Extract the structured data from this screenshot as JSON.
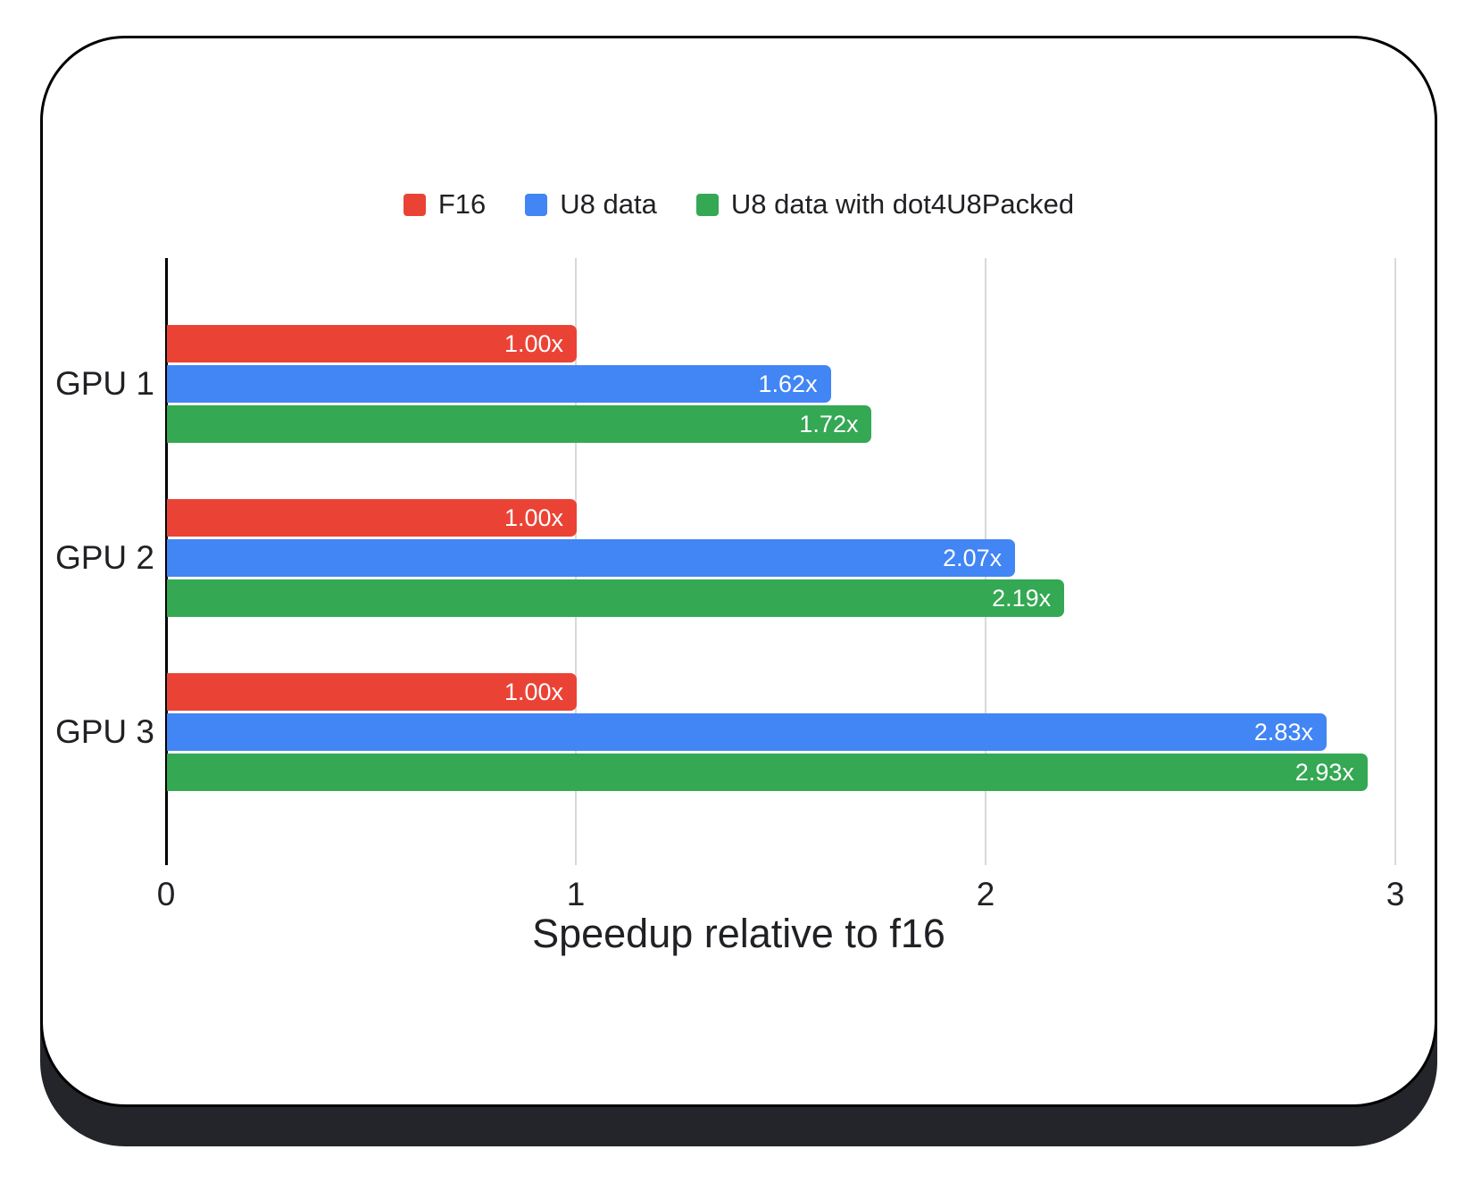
{
  "card": {
    "background": "#ffffff",
    "border_color": "#000000",
    "shadow_color": "#23252a"
  },
  "chart_data": {
    "type": "bar",
    "orientation": "horizontal",
    "title": "Speedup relative to f16",
    "categories": [
      "GPU 1",
      "GPU 2",
      "GPU 3"
    ],
    "series": [
      {
        "name": "F16",
        "color": "#ea4335",
        "values": [
          1.0,
          1.0,
          1.0
        ],
        "labels": [
          "1.00x",
          "1.00x",
          "1.00x"
        ]
      },
      {
        "name": "U8 data",
        "color": "#4285f4",
        "values": [
          1.62,
          2.07,
          2.83
        ],
        "labels": [
          "1.62x",
          "2.07x",
          "2.83x"
        ]
      },
      {
        "name": "U8 data with dot4U8Packed",
        "color": "#34a853",
        "values": [
          1.72,
          2.19,
          2.93
        ],
        "labels": [
          "1.72x",
          "2.19x",
          "2.93x"
        ]
      }
    ],
    "xticks": [
      "0",
      "1",
      "2",
      "3"
    ],
    "xlim": [
      0,
      3
    ],
    "grid": true,
    "legend_position": "top",
    "value_label_color": "#ffffff",
    "axis_color": "#000000",
    "gridline_color": "#d9d9d9",
    "text_color": "#202124"
  }
}
